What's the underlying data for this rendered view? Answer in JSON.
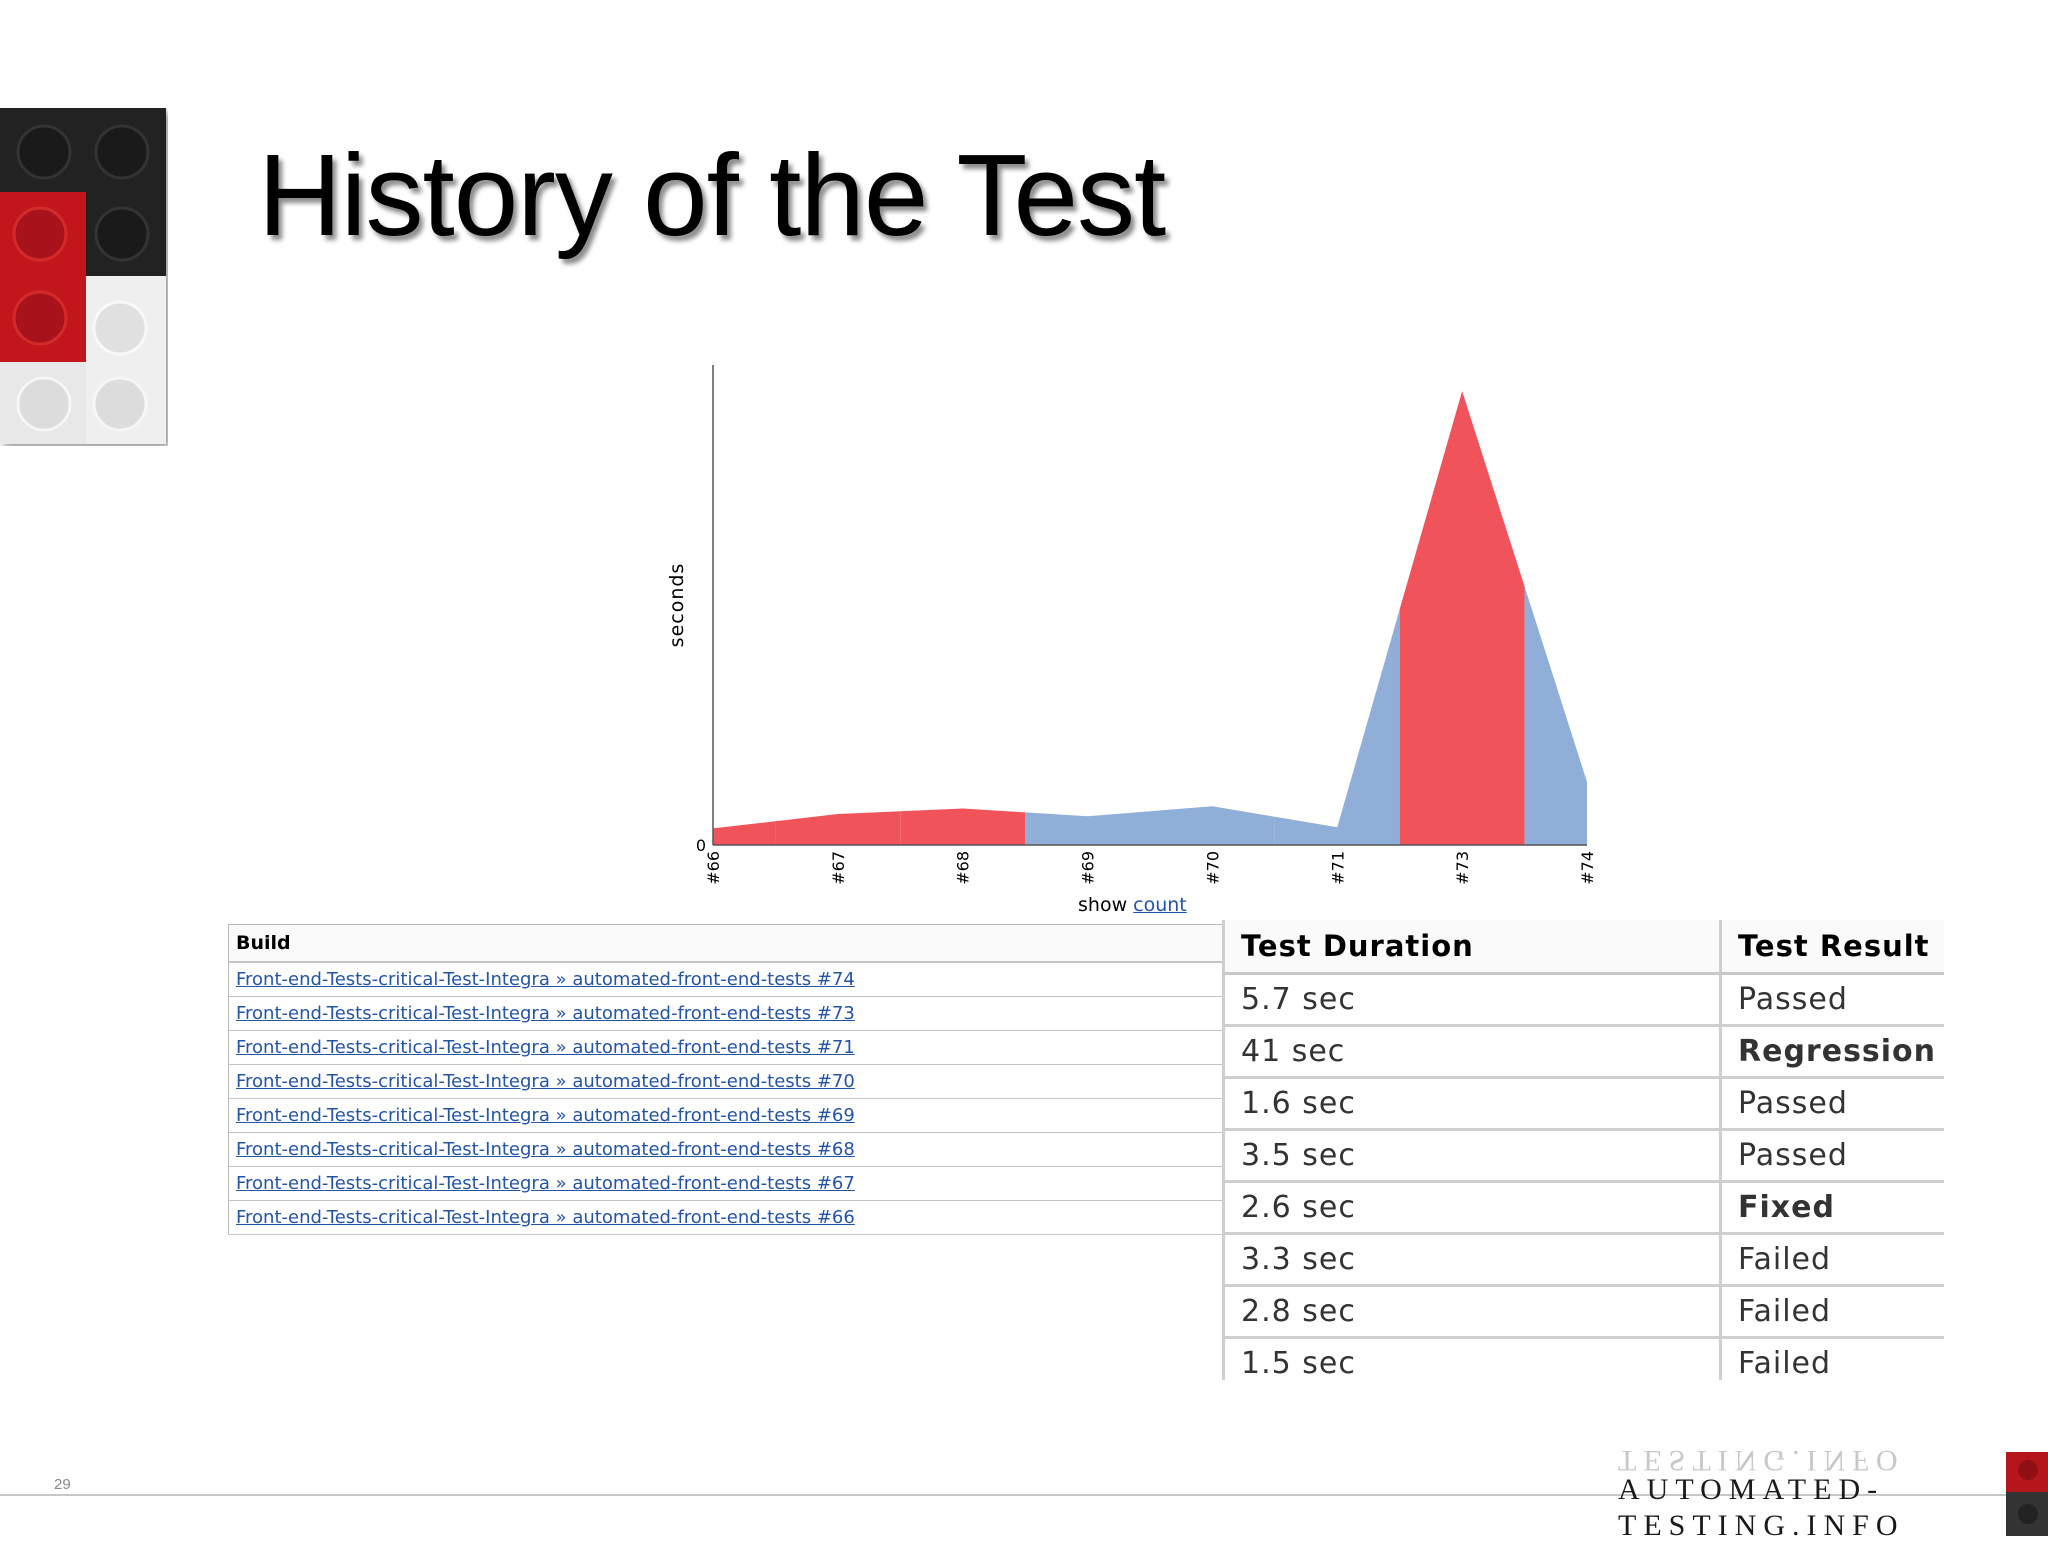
{
  "slide": {
    "title": "History of the Test",
    "number": "29"
  },
  "chart_data": {
    "type": "area",
    "ylabel": "seconds",
    "y_tick_labels": [
      "0"
    ],
    "x_tick_labels": [
      "#66",
      "#67",
      "#68",
      "#69",
      "#70",
      "#71",
      "#73",
      "#74"
    ],
    "x": [
      66,
      67,
      68,
      69,
      70,
      71,
      73,
      74
    ],
    "values": [
      1.5,
      2.8,
      3.3,
      2.6,
      3.5,
      1.6,
      41,
      5.7
    ],
    "status": [
      "Failed",
      "Failed",
      "Failed",
      "Fixed",
      "Passed",
      "Passed",
      "Regression",
      "Passed"
    ],
    "colors": {
      "failed": "#f0545a",
      "passed": "#8faed8"
    },
    "show_label": "show",
    "show_link": "count"
  },
  "build_table": {
    "header": "Build",
    "rows": [
      "Front-end-Tests-critical-Test-Integra » automated-front-end-tests #74",
      "Front-end-Tests-critical-Test-Integra » automated-front-end-tests #73",
      "Front-end-Tests-critical-Test-Integra » automated-front-end-tests #71",
      "Front-end-Tests-critical-Test-Integra » automated-front-end-tests #70",
      "Front-end-Tests-critical-Test-Integra » automated-front-end-tests #69",
      "Front-end-Tests-critical-Test-Integra » automated-front-end-tests #68",
      "Front-end-Tests-critical-Test-Integra » automated-front-end-tests #67",
      "Front-end-Tests-critical-Test-Integra » automated-front-end-tests #66"
    ]
  },
  "result_table": {
    "headers": [
      "Test Duration",
      "Test Result"
    ],
    "rows": [
      {
        "duration": "5.7 sec",
        "result": "Passed",
        "status": "passed"
      },
      {
        "duration": "41 sec",
        "result": "Regression",
        "status": "regression"
      },
      {
        "duration": "1.6 sec",
        "result": "Passed",
        "status": "passed"
      },
      {
        "duration": "3.5 sec",
        "result": "Passed",
        "status": "passed"
      },
      {
        "duration": "2.6 sec",
        "result": "Fixed",
        "status": "fixed"
      },
      {
        "duration": "3.3 sec",
        "result": "Failed",
        "status": "failed"
      },
      {
        "duration": "2.8 sec",
        "result": "Failed",
        "status": "failed"
      },
      {
        "duration": "1.5 sec",
        "result": "Failed",
        "status": "failed"
      }
    ]
  },
  "footer": {
    "brand_line1": "AUTOMATED-",
    "brand_line2": "TESTING.INFO"
  }
}
